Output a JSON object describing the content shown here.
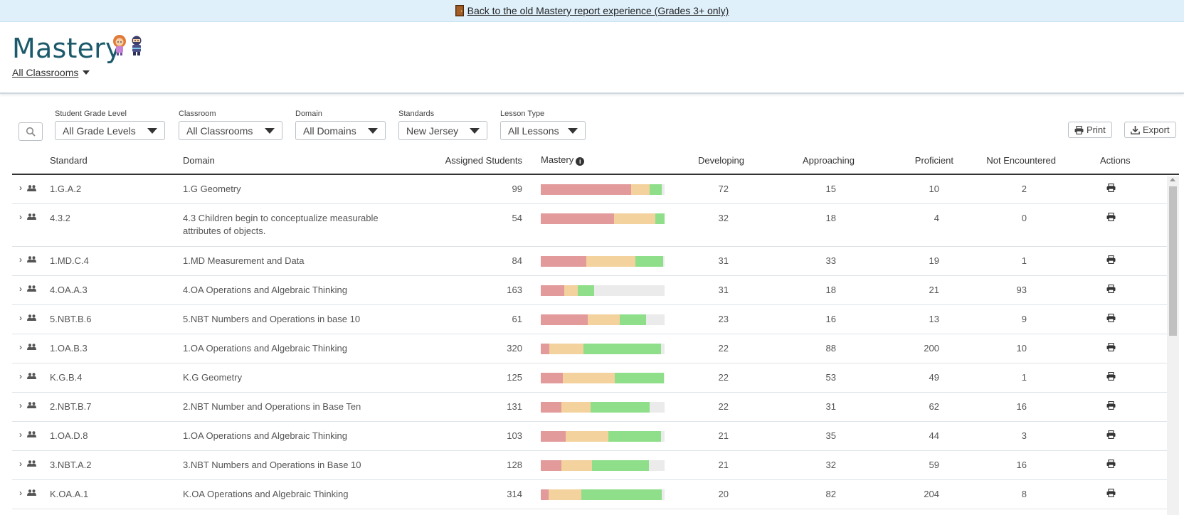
{
  "banner": {
    "link_text": "Back to the old Mastery report experience (Grades 3+ only)"
  },
  "header": {
    "title": "Mastery",
    "classroom_selector": "All Classrooms"
  },
  "filters": {
    "grade": {
      "label": "Student Grade Level",
      "value": "All Grade Levels"
    },
    "classroom": {
      "label": "Classroom",
      "value": "All Classrooms"
    },
    "domain": {
      "label": "Domain",
      "value": "All Domains"
    },
    "standards": {
      "label": "Standards",
      "value": "New Jersey"
    },
    "lesson_type": {
      "label": "Lesson Type",
      "value": "All Lessons"
    }
  },
  "actions": {
    "print": "Print",
    "export": "Export"
  },
  "columns": {
    "standard": "Standard",
    "domain": "Domain",
    "assigned": "Assigned Students",
    "mastery": "Mastery",
    "developing": "Developing",
    "approaching": "Approaching",
    "proficient": "Proficient",
    "not_encountered": "Not Encountered",
    "actions": "Actions"
  },
  "colors": {
    "developing": "#e29a9b",
    "approaching": "#f3d29d",
    "proficient": "#8fdf8a",
    "not_encountered": "#ebebeb",
    "title": "#1c5a6b"
  },
  "rows": [
    {
      "standard": "1.G.A.2",
      "domain": "1.G Geometry",
      "assigned": "99",
      "developing": "72",
      "approaching": "15",
      "proficient": "10",
      "not_encountered": "2"
    },
    {
      "standard": "4.3.2",
      "domain": "4.3 Children begin to conceptualize measurable attributes of objects.",
      "assigned": "54",
      "developing": "32",
      "approaching": "18",
      "proficient": "4",
      "not_encountered": "0"
    },
    {
      "standard": "1.MD.C.4",
      "domain": "1.MD Measurement and Data",
      "assigned": "84",
      "developing": "31",
      "approaching": "33",
      "proficient": "19",
      "not_encountered": "1"
    },
    {
      "standard": "4.OA.A.3",
      "domain": "4.OA Operations and Algebraic Thinking",
      "assigned": "163",
      "developing": "31",
      "approaching": "18",
      "proficient": "21",
      "not_encountered": "93"
    },
    {
      "standard": "5.NBT.B.6",
      "domain": "5.NBT Numbers and Operations in base 10",
      "assigned": "61",
      "developing": "23",
      "approaching": "16",
      "proficient": "13",
      "not_encountered": "9"
    },
    {
      "standard": "1.OA.B.3",
      "domain": "1.OA Operations and Algebraic Thinking",
      "assigned": "320",
      "developing": "22",
      "approaching": "88",
      "proficient": "200",
      "not_encountered": "10"
    },
    {
      "standard": "K.G.B.4",
      "domain": "K.G Geometry",
      "assigned": "125",
      "developing": "22",
      "approaching": "53",
      "proficient": "49",
      "not_encountered": "1"
    },
    {
      "standard": "2.NBT.B.7",
      "domain": "2.NBT Number and Operations in Base Ten",
      "assigned": "131",
      "developing": "22",
      "approaching": "31",
      "proficient": "62",
      "not_encountered": "16"
    },
    {
      "standard": "1.OA.D.8",
      "domain": "1.OA Operations and Algebraic Thinking",
      "assigned": "103",
      "developing": "21",
      "approaching": "35",
      "proficient": "44",
      "not_encountered": "3"
    },
    {
      "standard": "3.NBT.A.2",
      "domain": "3.NBT Numbers and Operations in Base 10",
      "assigned": "128",
      "developing": "21",
      "approaching": "32",
      "proficient": "59",
      "not_encountered": "16"
    },
    {
      "standard": "K.OA.A.1",
      "domain": "K.OA Operations and Algebraic Thinking",
      "assigned": "314",
      "developing": "20",
      "approaching": "82",
      "proficient": "204",
      "not_encountered": "8"
    }
  ]
}
